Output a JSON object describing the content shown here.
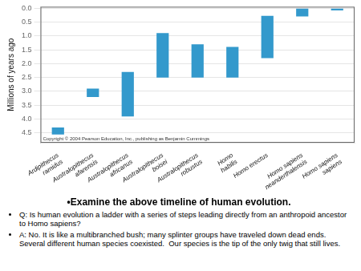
{
  "chart_data": {
    "type": "bar",
    "title": "•Examine the above timeline of human evolution.",
    "ylabel": "Millions of years ago",
    "categories": [
      "Ardipithecus\nramidus",
      "Australopithecus\nafarensis",
      "Australopithecus\nafricanus",
      "Australopithecus\nboisei",
      "Australopithecus\nrobustus",
      "Homo\nhabilis",
      "Homo erectus",
      "Homo sapiens\nneanderthalensis",
      "Homo sapiens\nsapiens"
    ],
    "values": [
      [
        4.3,
        4.55
      ],
      [
        2.9,
        3.2
      ],
      [
        2.3,
        3.9
      ],
      [
        0.9,
        2.5
      ],
      [
        1.3,
        2.5
      ],
      [
        1.4,
        2.5
      ],
      [
        0.28,
        1.8
      ],
      [
        0.0,
        0.3
      ],
      [
        0.0,
        0.08
      ]
    ],
    "color": "#3399cc",
    "ylim": [
      4.85,
      -0.05
    ],
    "yticks": [
      {
        "value": 0,
        "label": "0.0"
      },
      0.5,
      {
        "value": 1,
        "label": "1.0"
      },
      1.5,
      {
        "value": 2,
        "label": "2.0"
      },
      2.5,
      {
        "value": 3,
        "label": "3.0"
      },
      3.5,
      {
        "value": 4,
        "label": "4.0"
      },
      4.5
    ],
    "grid": true,
    "annotations": [
      "Copyright © 2004 Pearson Education, Inc., publishing as Benjamin Cummings",
      "Q: Is human evolution a ladder with a series of steps leading directly from an anthropoid ancestor to Homo sapiens?",
      "A: No. It is like a multibranched bush; many splinter groups have traveled down dead ends.  Several different human species coexisted.  Our species is the tip of the only twig that still lives."
    ]
  }
}
